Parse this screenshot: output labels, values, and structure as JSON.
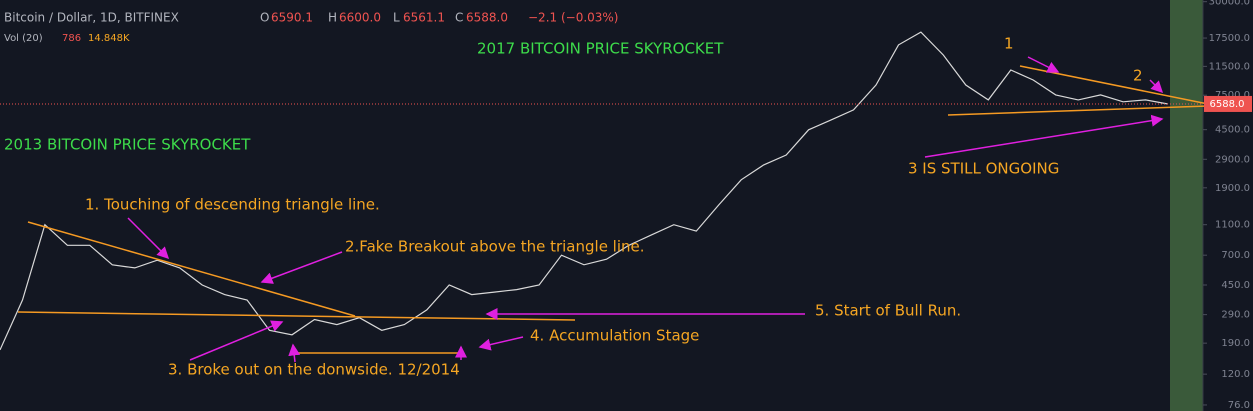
{
  "chart_data": {
    "type": "line",
    "title": "Bitcoin / Dollar, 1D, BITFINEX",
    "ohlc": [
      {
        "label": "O",
        "value": "6590.1"
      },
      {
        "label": "H",
        "value": "6600.0"
      },
      {
        "label": "L",
        "value": "6561.1"
      },
      {
        "label": "C",
        "value": "6588.0"
      }
    ],
    "change": "−2.1 (−0.03%)",
    "volume": {
      "label": "Vol (20)",
      "value": "786",
      "average": "14.848K"
    },
    "last_price": {
      "value": 6588,
      "label": "6588.0"
    },
    "log_scale": true,
    "grid": false,
    "color": "#d9d9d9",
    "ylim": [
      69.5,
      30760
    ],
    "yticks": [
      {
        "value": 30000,
        "label": "30000.0"
      },
      {
        "value": 17500,
        "label": "17500.0"
      },
      {
        "value": 11500,
        "label": "11500.0"
      },
      {
        "value": 7500,
        "label": "7500.0"
      },
      {
        "value": 4500,
        "label": "4500.0"
      },
      {
        "value": 2900,
        "label": "2900.0"
      },
      {
        "value": 1900,
        "label": "1900.0"
      },
      {
        "value": 1100,
        "label": "1100.0"
      },
      {
        "value": 700,
        "label": "700.0"
      },
      {
        "value": 450,
        "label": "450.0"
      },
      {
        "value": 290,
        "label": "290.0"
      },
      {
        "value": 190,
        "label": "190.0"
      },
      {
        "value": 120,
        "label": "120.0"
      },
      {
        "value": 76,
        "label": "76.0"
      }
    ],
    "values": [
      172,
      360,
      1100,
      810,
      810,
      607,
      580,
      650,
      580,
      450,
      390,
      360,
      230,
      215,
      270,
      250,
      277,
      230,
      250,
      311,
      450,
      390,
      405,
      420,
      450,
      700,
      607,
      660,
      810,
      946,
      1100,
      1000,
      1475,
      2140,
      2670,
      3090,
      4490,
      5200,
      6030,
      8730,
      15800,
      19100,
      13600,
      8730,
      7000,
      10900,
      9400,
      7530,
      7000,
      7530,
      6800,
      7000,
      6588
    ],
    "annotations": [
      "2017 BITCOIN PRICE SKYROCKET",
      "2013 BITCOIN PRICE SKYROCKET",
      "1. Touching of descending triangle line.",
      "2.Fake Breakout above the triangle line.",
      "3. Broke out on the donwside. 12/2014",
      "4. Accumulation Stage",
      "5. Start of Bull Run.",
      "1",
      "2",
      "3 IS STILL ONGOING"
    ]
  }
}
